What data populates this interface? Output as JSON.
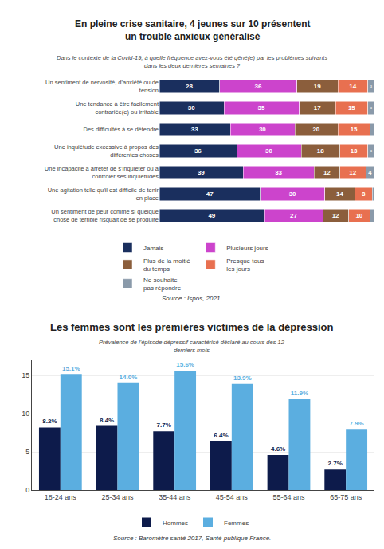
{
  "chart_data": [
    {
      "type": "bar",
      "orientation": "horizontal",
      "stacked": true,
      "title": "En pleine crise sanitaire, 4 jeunes sur 10 présentent\nun trouble anxieux généralisé",
      "subtitle": "Dans le contexte de la Covid-19, à quelle fréquence avez-vous été gêné(e) par les problèmes suivants\ndans les deux dernières semaines ?",
      "annotations": [
        "Source : Ispos, 2021."
      ],
      "categories": [
        "Un sentiment de nervosité, d'anxiété ou de\ntension",
        "Une tendance à être facilement\ncontrariée(e) ou irritable",
        "Des difficultés à se détendre",
        "Une inquiétude excessive à propos des\ndifférentes choses",
        "Une incapacité à arrêter de s'inquiéter ou à\ncontrôler ses inquiétudes",
        "Une agitation telle qu'il est difficile de tenir\nen place",
        "Un sentiment de peur comme si quelque\nchose de terrible risquait de se produire"
      ],
      "series": [
        {
          "name": "Jamais",
          "color": "#1a2f5e",
          "values": [
            28,
            30,
            33,
            36,
            39,
            47,
            49
          ]
        },
        {
          "name": "Plusieurs jours",
          "color": "#cc44cc",
          "values": [
            36,
            35,
            30,
            30,
            33,
            30,
            27
          ]
        },
        {
          "name": "Plus de la moitié\ndu temps",
          "color": "#8b5e3c",
          "values": [
            19,
            17,
            20,
            18,
            12,
            14,
            12
          ]
        },
        {
          "name": "Presque tous\nles jours",
          "color": "#e87050",
          "values": [
            14,
            15,
            15,
            13,
            12,
            8,
            10
          ]
        },
        {
          "name": "Ne souhaite\npas répondre",
          "color": "#8a9aaa",
          "values": [
            3,
            3,
            2,
            3,
            4,
            1,
            2
          ],
          "value_labels": [
            "3",
            "3",
            null,
            "3",
            "4",
            null,
            null
          ]
        }
      ],
      "xlim": [
        0,
        100
      ],
      "tick_labels": "y",
      "grid": false,
      "data_labels": true,
      "legend": "bottom"
    },
    {
      "type": "bar",
      "title": "Les femmes sont les premières victimes de la dépression",
      "subtitle": "Prévalence de l'épisode dépressif caractérisé déclaré au cours des 12\nderniers mois",
      "annotations": [
        "Source : Baromètre santé 2017, Santé publique France."
      ],
      "categories": [
        "18-24 ans",
        "25-34 ans",
        "35-44 ans",
        "45-54 ans",
        "55-64 ans",
        "65-75 ans"
      ],
      "series": [
        {
          "name": "Hommes",
          "color": "#0d1b4b",
          "values": [
            8.2,
            8.4,
            7.7,
            6.4,
            4.6,
            2.7
          ],
          "value_labels": [
            "8.2%",
            "8.4%",
            "7.7%",
            "6.4%",
            "4.6%",
            "2.7%"
          ]
        },
        {
          "name": "Femmes",
          "color": "#5baee0",
          "values": [
            15.1,
            14.0,
            15.6,
            13.9,
            11.9,
            7.9
          ],
          "value_labels": [
            "15.1%",
            "14.0%",
            "15.6%",
            "13.9%",
            "11.9%",
            "7.9%"
          ]
        }
      ],
      "ylim": [
        0,
        17
      ],
      "yticks": [
        0,
        5,
        10,
        15
      ],
      "grid": true,
      "data_labels": true,
      "legend": "bottom"
    }
  ]
}
